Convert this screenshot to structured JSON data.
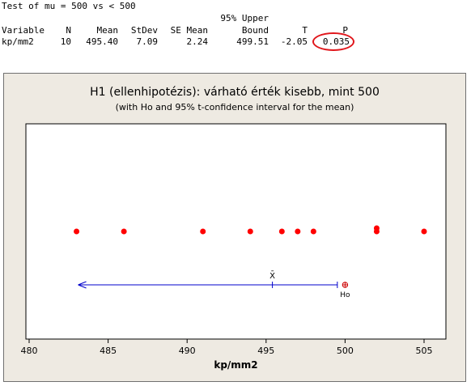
{
  "session": {
    "test_line": "Test of mu = 500 vs < 500",
    "header_top": "95% Upper",
    "headers": [
      "Variable",
      "N",
      "Mean",
      "StDev",
      "SE Mean",
      "Bound",
      "T",
      "P"
    ],
    "row": [
      "kp/mm2",
      "10",
      "495.40",
      "7.09",
      "2.24",
      "499.51",
      "-2.05",
      "0.035"
    ],
    "highlight_color": "#e0161b"
  },
  "chart_data": {
    "type": "scatter",
    "title": "H1 (ellenhipotézis): várható érték kisebb, mint 500",
    "subtitle": "(with Ho and 95% t-confidence interval for the mean)",
    "xlabel": "kp/mm2",
    "xlim": [
      480,
      506
    ],
    "xticks": [
      480,
      485,
      490,
      495,
      500,
      505
    ],
    "points": [
      483,
      486,
      491,
      494,
      496,
      497,
      498,
      502,
      502,
      505
    ],
    "mean": 495.4,
    "mean_label": "X̄",
    "interval": {
      "upper_bound": 499.51,
      "lower": "-infinity"
    },
    "h0": 500,
    "h0_label": "Ho",
    "colors": {
      "points": "#ff0000",
      "interval": "#0000cc",
      "h0": "#cc0000",
      "panel": "#eeeae2"
    }
  }
}
